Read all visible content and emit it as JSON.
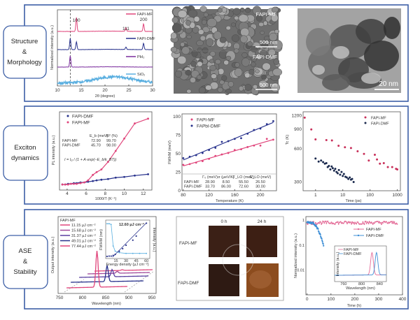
{
  "sections": [
    {
      "label_lines": [
        "Structure",
        "&",
        "Morphology"
      ]
    },
    {
      "label_lines": [
        "Exciton",
        "dynamics"
      ]
    },
    {
      "label_lines": [
        "ASE",
        "&",
        "Stability"
      ]
    }
  ],
  "sem": {
    "top_label": "FAPI-MF",
    "bottom_label": "FAPI-DMF",
    "scale_top": "500 nm",
    "scale_bottom": "500 nm"
  },
  "tem": {
    "scale": "20 nm"
  },
  "photos": {
    "cols": [
      "0 h",
      "24 h"
    ],
    "rows": [
      "FAPI-MF",
      "FAPI-DMF"
    ]
  },
  "colors": {
    "mf": "#e0457b",
    "dmf": "#27318c",
    "pbi2": "#7b2d9e",
    "sio2": "#5aafe0",
    "frame": "#3d5fa6"
  },
  "chart_data": [
    {
      "id": "xrd",
      "type": "line",
      "xlabel": "2θ (degree)",
      "ylabel": "Normalized intensity (a.u.)",
      "xlim": [
        10,
        30
      ],
      "xticks": [
        10,
        15,
        20,
        25,
        30
      ],
      "dashed_x": 12.7,
      "series": [
        {
          "name": "FAPI-MF",
          "color": "#e0457b",
          "peaks": [
            [
              14.0,
              1.0
            ],
            [
              24.4,
              0.28
            ],
            [
              28.1,
              0.55
            ]
          ]
        },
        {
          "name": "FAPI-DMF",
          "color": "#27318c",
          "peaks": [
            [
              12.7,
              0.8
            ],
            [
              14.0,
              0.55
            ],
            [
              24.4,
              0.18
            ],
            [
              28.1,
              0.45
            ]
          ]
        },
        {
          "name": "PbI₂",
          "color": "#7b2d9e",
          "peaks": [
            [
              12.7,
              0.8
            ]
          ]
        },
        {
          "name": "SiO₂",
          "color": "#5aafe0",
          "broad": [
            22,
            4,
            0.45
          ]
        }
      ],
      "peak_labels": [
        {
          "text": "100",
          "x": 14.0
        },
        {
          "text": "111",
          "x": 24.4
        },
        {
          "text": "200",
          "x": 28.1
        }
      ]
    },
    {
      "id": "pl",
      "type": "scatter",
      "xlabel": "1000/T (K⁻¹)",
      "ylabel": "PL intensity (a.u.)",
      "xlim": [
        3.2,
        12.9
      ],
      "ylim": [
        0,
        1.1
      ],
      "xticks": [
        4,
        6,
        8,
        10,
        12
      ],
      "series": [
        {
          "name": "FAPI-DMF",
          "color": "#27318c",
          "x": [
            3.5,
            3.8,
            4.1,
            4.4,
            4.7,
            5.0,
            5.4,
            5.8,
            6.2,
            6.7,
            7.1,
            7.6,
            8.3,
            9.1,
            10.0,
            11.1,
            12.5
          ],
          "y": [
            0.04,
            0.04,
            0.05,
            0.05,
            0.06,
            0.06,
            0.07,
            0.07,
            0.08,
            0.09,
            0.1,
            0.11,
            0.12,
            0.14,
            0.15,
            0.17,
            0.19
          ]
        },
        {
          "name": "FAPI-MF",
          "color": "#e0457b",
          "x": [
            3.5,
            3.8,
            4.1,
            4.4,
            4.7,
            5.0,
            5.4,
            5.8,
            6.2,
            6.7,
            7.1,
            7.6,
            8.3,
            9.1,
            10.0,
            11.1,
            12.5
          ],
          "y": [
            0.04,
            0.04,
            0.04,
            0.05,
            0.05,
            0.05,
            0.06,
            0.07,
            0.1,
            0.18,
            0.22,
            0.26,
            0.37,
            0.53,
            0.71,
            0.93,
            1.0
          ]
        }
      ],
      "table": {
        "headers": [
          "E_b (meV)",
          "R² (%)"
        ],
        "rows": [
          [
            "FAPI-MF",
            "72.90",
            "99.70"
          ],
          [
            "FAPI-DMF",
            "45.70",
            "98.00"
          ]
        ]
      },
      "equation": "I = I₀ / (1 + A·exp(−E_b/k_BT))"
    },
    {
      "id": "fwhm",
      "type": "scatter",
      "xlabel": "Temperature (K)",
      "ylabel": "FWHM (meV)",
      "xlim": [
        78,
        225
      ],
      "ylim": [
        0,
        100
      ],
      "xticks": [
        80,
        120,
        160,
        200
      ],
      "yticks": [
        0,
        25,
        50,
        75,
        100
      ],
      "series": [
        {
          "name": "FAPI-MF",
          "color": "#e0457b",
          "x": [
            80,
            90,
            100,
            110,
            120,
            130,
            140,
            150,
            160,
            170,
            180,
            190,
            200,
            210,
            220
          ],
          "y": [
            35,
            36,
            38,
            40,
            43,
            47,
            49,
            51,
            55,
            56,
            59,
            61,
            61,
            70,
            69
          ]
        },
        {
          "name": "FAPbI-DMF",
          "color": "#27318c",
          "x": [
            80,
            90,
            100,
            110,
            120,
            130,
            140,
            150,
            160,
            170,
            180,
            190,
            200,
            210,
            220
          ],
          "y": [
            44,
            46,
            48,
            51,
            55,
            58,
            66,
            67,
            70,
            71,
            77,
            82,
            84,
            90,
            94
          ]
        }
      ],
      "table": {
        "headers": [
          "Γ₀ (meV)",
          "σ (μeV/K)",
          "Γ_LO (meV)",
          "E_LO (meV)"
        ],
        "rows": [
          [
            "FAPI-MF",
            "28.90",
            "8.50",
            "55.50",
            "26.50"
          ],
          [
            "FAPI-DMF",
            "33.70",
            "86.00",
            "72.60",
            "30.00"
          ]
        ]
      }
    },
    {
      "id": "tc",
      "type": "scatter",
      "xlabel": "Time (ps)",
      "ylabel": "Tc (K)",
      "xscale": "log",
      "yscale": "log",
      "xlim": [
        0.35,
        1300
      ],
      "ylim": [
        250,
        1300
      ],
      "xticks": [
        1,
        10,
        100,
        1000
      ],
      "yticks": [
        300,
        600,
        900,
        1200
      ],
      "series": [
        {
          "name": "FAPI-MF",
          "color": "#c8305a",
          "x": [
            0.4,
            0.7,
            1,
            2.5,
            4,
            7,
            12,
            20,
            35,
            60,
            90,
            150,
            180,
            230,
            320,
            450,
            650,
            900,
            1000
          ],
          "y": [
            1150,
            900,
            730,
            720,
            715,
            640,
            620,
            610,
            570,
            540,
            470,
            530,
            480,
            440,
            445,
            410,
            410,
            395,
            390
          ]
        },
        {
          "name": "FAPI-DMF",
          "color": "#1b2a4e",
          "x": [
            1,
            1.3,
            1.6,
            1.9,
            2.2,
            2.5,
            2.8,
            3.1,
            3.5,
            3.9,
            4.3,
            4.8,
            5.3,
            5.9,
            6.5,
            7.2,
            8,
            9,
            10,
            11,
            12.5,
            14,
            16,
            18,
            20,
            22,
            25
          ],
          "y": [
            490,
            460,
            470,
            455,
            440,
            445,
            410,
            420,
            390,
            415,
            400,
            380,
            395,
            370,
            360,
            385,
            350,
            370,
            340,
            355,
            335,
            330,
            320,
            330,
            315,
            320,
            300
          ]
        }
      ]
    },
    {
      "id": "ase",
      "type": "line",
      "xlabel": "Wavelength (nm)",
      "ylabel": "Output intensity (a.u.)",
      "xlim": [
        750,
        950
      ],
      "xticks": [
        750,
        800,
        850,
        900,
        950
      ],
      "legend_title": "FAPI-MF",
      "series": [
        {
          "name": "11.15 μJ cm⁻²",
          "color": "#e0457b",
          "peak_nm": 870,
          "height": 0.02
        },
        {
          "name": "15.68 μJ cm⁻²",
          "color": "#a04a9a",
          "peak_nm": 860,
          "height": 0.05
        },
        {
          "name": "31.37 μJ cm⁻²",
          "color": "#5a3ea0",
          "peak_nm": 850,
          "height": 0.2
        },
        {
          "name": "49.01 μJ cm⁻²",
          "color": "#27318c",
          "peak_nm": 840,
          "height": 0.45
        },
        {
          "name": "77.44 μJ cm⁻²",
          "color": "#e0457b",
          "peak_nm": 820,
          "height": 1.0
        }
      ],
      "inset": {
        "threshold_label": "12.60 μJ cm⁻²",
        "xlabel": "Energy density (μJ cm⁻²)",
        "ylabel_left": "FWHM (nm)",
        "ylabel_right": "Intensity (a.u.)",
        "xticks": [
          15,
          30,
          45,
          60
        ],
        "xlim": [
          0,
          65
        ],
        "fwhm": {
          "x": [
            2,
            5,
            8,
            11,
            14,
            20,
            30,
            40,
            50,
            60
          ],
          "y": [
            45,
            45,
            44,
            15,
            8,
            6,
            5,
            5,
            5,
            5
          ]
        },
        "intensity": {
          "x": [
            2,
            5,
            8,
            11,
            14,
            20,
            25,
            30,
            40,
            45,
            60
          ],
          "y": [
            0.02,
            0.03,
            0.03,
            0.05,
            0.08,
            0.17,
            0.25,
            0.35,
            0.5,
            0.62,
            1.0
          ]
        }
      }
    },
    {
      "id": "stability",
      "type": "scatter",
      "xlabel": "Time (h)",
      "ylabel": "Normalized intensity (a.u.)",
      "yscale": "log",
      "xlim": [
        -5,
        400
      ],
      "ylim": [
        0.001,
        1.4
      ],
      "xticks": [
        0,
        100,
        200,
        300,
        400
      ],
      "yticks": [
        1,
        0.1,
        0.01
      ],
      "series": [
        {
          "name": "FAPI-MF",
          "color": "#e36b97",
          "t_range": [
            0,
            380
          ],
          "level": 0.8
        },
        {
          "name": "FAPI-DMF",
          "color": "#3f8fd6",
          "t_range": [
            0,
            70
          ],
          "start": 0.8,
          "end": 0.09
        }
      ],
      "inset": {
        "xlabel": "Wavelength (nm)",
        "ylabel": "Intensity (a.u.)",
        "xlim": [
          740,
          855
        ],
        "xticks": [
          760,
          800,
          840
        ],
        "series": [
          {
            "name": "FAPI-MF",
            "color": "#e36b97",
            "peak_nm": 823
          },
          {
            "name": "FAPI-DMF",
            "color": "#3f8fd6",
            "peak_nm": 833
          }
        ]
      }
    }
  ]
}
